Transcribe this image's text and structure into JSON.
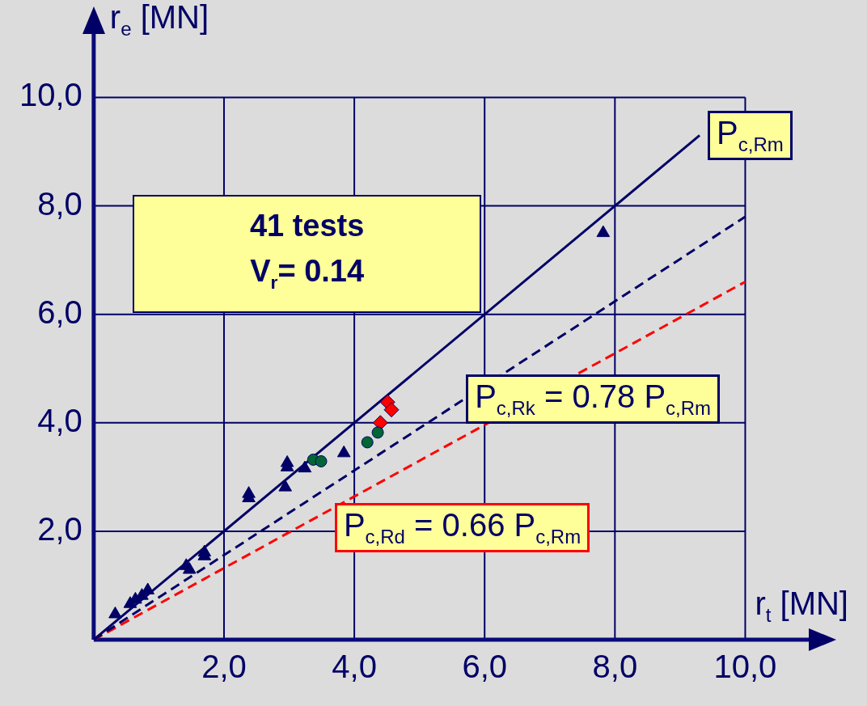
{
  "chart_data": {
    "type": "scatter",
    "xlabel": "r$_{t}$ [MN]",
    "ylabel": "r$_{e}$ [MN]",
    "xlim": [
      0,
      11
    ],
    "ylim": [
      0,
      11.2
    ],
    "xticks": [
      {
        "value": 2,
        "label": "2,0"
      },
      {
        "value": 4,
        "label": "4,0"
      },
      {
        "value": 6,
        "label": "6,0"
      },
      {
        "value": 8,
        "label": "8,0"
      },
      {
        "value": 10,
        "label": "10,0"
      }
    ],
    "yticks": [
      {
        "value": 2,
        "label": "2,0"
      },
      {
        "value": 4,
        "label": "4,0"
      },
      {
        "value": 6,
        "label": "6,0"
      },
      {
        "value": 8,
        "label": "8,0"
      },
      {
        "value": 10,
        "label": "10,0"
      }
    ],
    "grid": true,
    "legend": false,
    "series": [
      {
        "type": "line",
        "color": "#000066",
        "line_style": "solid",
        "marker": "none",
        "x": [
          0,
          9.3
        ],
        "values": [
          0,
          9.3
        ]
      },
      {
        "type": "line",
        "color": "#000066",
        "line_style": "dashed",
        "marker": "none",
        "x": [
          0,
          10
        ],
        "values": [
          0,
          7.8
        ]
      },
      {
        "type": "line",
        "color": "#ff0000",
        "line_style": "dashed",
        "marker": "none",
        "x": [
          0,
          10
        ],
        "values": [
          0,
          6.6
        ]
      },
      {
        "type": "scatter",
        "color": "#000066",
        "marker": "triangle",
        "x": [
          0.33,
          0.56,
          0.64,
          0.74,
          0.83,
          1.42,
          1.47,
          1.7,
          1.7,
          2.38,
          2.38,
          2.94,
          2.97,
          2.97,
          3.24,
          3.84,
          7.82
        ],
        "values": [
          0.47,
          0.66,
          0.74,
          0.81,
          0.91,
          1.36,
          1.29,
          1.61,
          1.54,
          2.69,
          2.61,
          2.81,
          3.26,
          3.18,
          3.16,
          3.44,
          7.5
        ]
      },
      {
        "type": "scatter",
        "color": "#006633",
        "marker": "circle",
        "x": [
          3.37,
          3.49,
          4.2,
          4.36
        ],
        "values": [
          3.32,
          3.29,
          3.64,
          3.82
        ]
      },
      {
        "type": "scatter",
        "color": "#ff0000",
        "marker": "diamond",
        "x": [
          4.4,
          4.51,
          4.57
        ],
        "values": [
          4.0,
          4.38,
          4.24
        ]
      }
    ],
    "annotations": [
      "41 tests",
      "V$_{r}$= 0.14",
      {
        "text": "P$_{c,Rm}$",
        "x": 9.3,
        "y": 9.3
      },
      {
        "text": "P$_{c,Rk}$ = 0.78 P$_{c,Rm}$",
        "x": 5.9,
        "y": 4.6
      },
      {
        "text": "P$_{c,Rd}$ = 0.66 P$_{c,Rm}$",
        "x": 3.7,
        "y": 2.44
      }
    ]
  }
}
